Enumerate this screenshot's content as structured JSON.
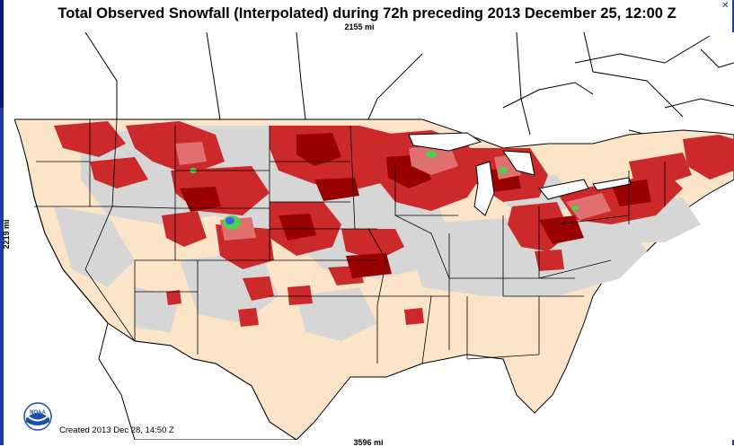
{
  "title": "Total Observed Snowfall (Interpolated) during 72h preceding 2013 December 25, 12:00 Z",
  "map_width_label": "2155 mi",
  "map_height_label": "2219 mi",
  "map_bottom_label": "3596 mi",
  "created_label": "Created 2013 Dec 28, 14:50 Z",
  "logo_text": "NOAA",
  "colors": {
    "land_no_snow": "#fbe4c8",
    "trace_snow": "#d6d6d6",
    "light_snow": "#cc2a2a",
    "moderate_snow": "#990000",
    "heavier_snow": "#e07070",
    "heavy_snow_green": "#4fd04f",
    "heavy_snow_blue": "#3366ff",
    "border_lines": "#000000"
  }
}
